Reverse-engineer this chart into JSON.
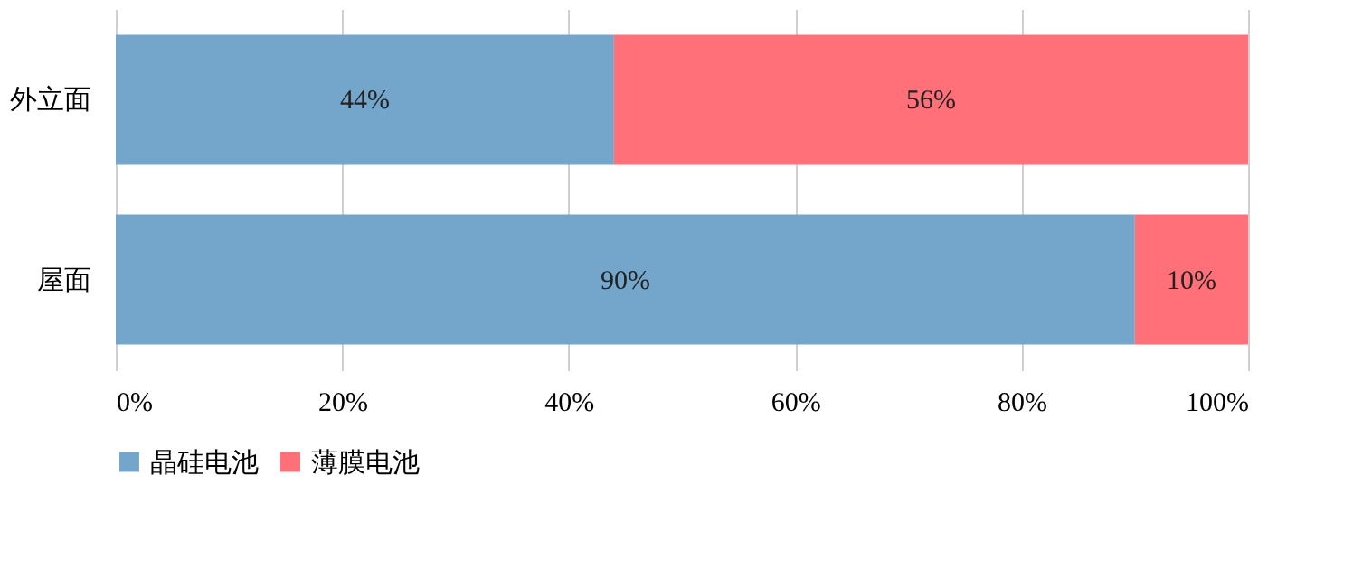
{
  "chart_data": {
    "type": "bar",
    "orientation": "horizontal",
    "stacked": true,
    "categories": [
      "外立面",
      "屋面"
    ],
    "series": [
      {
        "name": "晶硅电池",
        "color": "#74a6cc",
        "values": [
          44,
          90
        ],
        "value_labels": [
          "44%",
          "90%"
        ]
      },
      {
        "name": "薄膜电池",
        "color": "#ff7078",
        "values": [
          56,
          10
        ],
        "value_labels": [
          "56%",
          "10%"
        ]
      }
    ],
    "xlim": [
      0,
      100
    ],
    "xticks": [
      {
        "value": 0,
        "label": "0%"
      },
      {
        "value": 20,
        "label": "20%"
      },
      {
        "value": 40,
        "label": "40%"
      },
      {
        "value": 60,
        "label": "60%"
      },
      {
        "value": 80,
        "label": "80%"
      },
      {
        "value": 100,
        "label": "100%"
      }
    ],
    "grid": "x",
    "legend": "bottom"
  }
}
